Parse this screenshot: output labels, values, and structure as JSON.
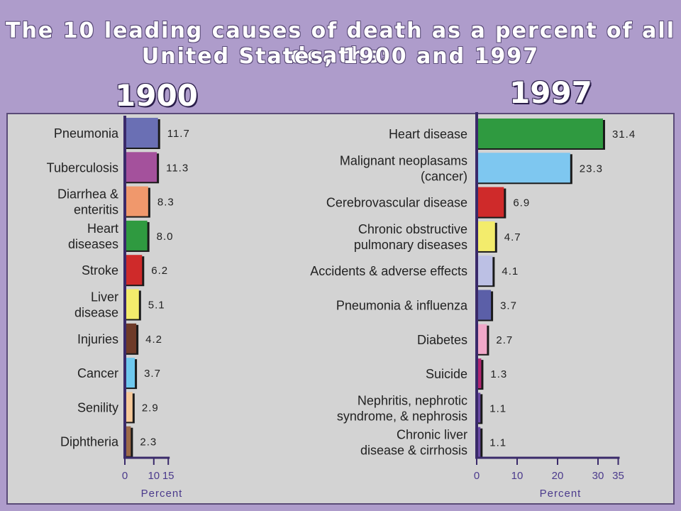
{
  "title_line1": "The 10 leading causes of death as a percent of all deaths:",
  "title_line2": "United States, 1900 and 1997",
  "chart_data": [
    {
      "type": "bar",
      "orientation": "horizontal",
      "panel_title": "1900",
      "xlabel": "Percent",
      "xlim": [
        0,
        15
      ],
      "xticks": [
        "0",
        "10",
        "15"
      ],
      "categories": [
        [
          "Pneumonia"
        ],
        [
          "Tuberculosis"
        ],
        [
          "Diarrhea &",
          "enteritis"
        ],
        [
          "Heart",
          "diseases"
        ],
        [
          "Stroke"
        ],
        [
          "Liver",
          "disease"
        ],
        [
          "Injuries"
        ],
        [
          "Cancer"
        ],
        [
          "Senility"
        ],
        [
          "Diphtheria"
        ]
      ],
      "values": [
        11.7,
        11.3,
        8.3,
        8.0,
        6.2,
        5.1,
        4.2,
        3.7,
        2.9,
        2.3
      ],
      "value_labels": [
        "11.7",
        "11.3",
        "8.3",
        "8.0",
        "6.2",
        "5.1",
        "4.2",
        "3.7",
        "2.9",
        "2.3"
      ],
      "colors": [
        "#6a6fb4",
        "#a4519c",
        "#f0986c",
        "#2f9a40",
        "#cf2a2a",
        "#f3ec6c",
        "#6e3a28",
        "#6ec8ee",
        "#f6c99a",
        "#9c6a48"
      ]
    },
    {
      "type": "bar",
      "orientation": "horizontal",
      "panel_title": "1997",
      "xlabel": "Percent",
      "xlim": [
        0,
        35
      ],
      "xticks": [
        "0",
        "10",
        "20",
        "30",
        "35"
      ],
      "categories": [
        [
          "Heart disease"
        ],
        [
          "Malignant neoplasams",
          "(cancer)"
        ],
        [
          "Cerebrovascular disease"
        ],
        [
          "Chronic obstructive",
          "pulmonary diseases"
        ],
        [
          "Accidents & adverse effects"
        ],
        [
          "Pneumonia & influenza"
        ],
        [
          "Diabetes"
        ],
        [
          "Suicide"
        ],
        [
          "Nephritis, nephrotic",
          "syndrome, & nephrosis"
        ],
        [
          "Chronic liver",
          "disease & cirrhosis"
        ]
      ],
      "values": [
        31.4,
        23.3,
        6.9,
        4.7,
        4.1,
        3.7,
        2.7,
        1.3,
        1.1,
        1.1
      ],
      "value_labels": [
        "31.4",
        "23.3",
        "6.9",
        "4.7",
        "4.1",
        "3.7",
        "2.7",
        "1.3",
        "1.1",
        "1.1"
      ],
      "colors": [
        "#2f9a40",
        "#7ec7f0",
        "#cf2a2a",
        "#f3ec6c",
        "#bcc0e4",
        "#5b5fa8",
        "#f0a8c8",
        "#b02470",
        "#6a4aa4",
        "#6a4aa4"
      ]
    }
  ],
  "colors": {
    "background": "#ae9ccb",
    "panel": "#d3d3d3",
    "axis": "#3a2a6a",
    "tick_text": "#4b3a8c"
  }
}
